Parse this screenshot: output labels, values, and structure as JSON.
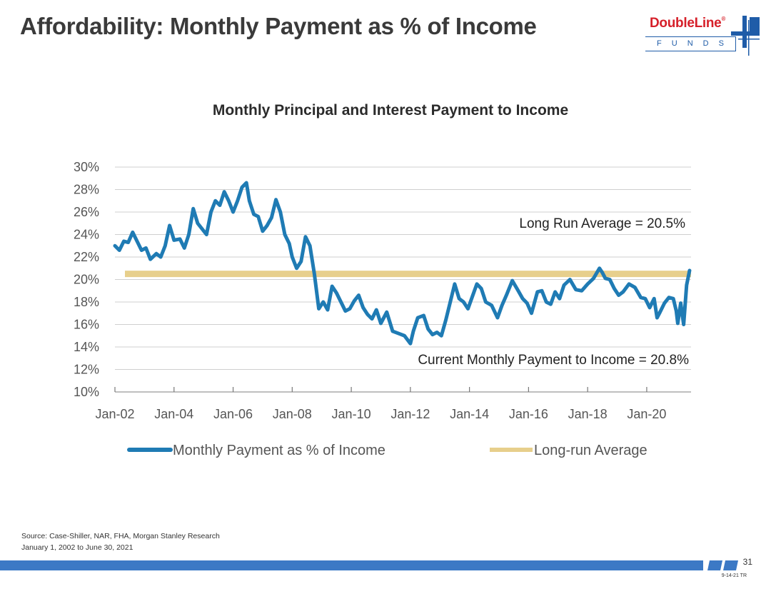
{
  "slide": {
    "title": "Affordability: Monthly Payment as % of Income",
    "page_number": "31",
    "doc_code": "9-14-21 TR"
  },
  "logo": {
    "name": "DoubleLine",
    "registered": "®",
    "subtitle": "FUNDS"
  },
  "source": {
    "line1": "Source: Case-Shiller, NAR, FHA, Morgan Stanley Research",
    "line2": "January 1, 2002 to June 30, 2021"
  },
  "colors": {
    "series": "#1f7bb4",
    "average": "#e7cf8c",
    "brand_red": "#d6202a",
    "brand_blue": "#1f5ca8",
    "footer_blue": "#3c79c5"
  },
  "chart_data": {
    "type": "line",
    "title": "Monthly Principal and Interest Payment to Income",
    "xlabel": "",
    "ylabel": "",
    "ylim": [
      10,
      30
    ],
    "yticks": [
      10,
      12,
      14,
      16,
      18,
      20,
      22,
      24,
      26,
      28,
      30
    ],
    "ytick_labels": [
      "10%",
      "12%",
      "14%",
      "16%",
      "18%",
      "20%",
      "22%",
      "24%",
      "26%",
      "28%",
      "30%"
    ],
    "xlim": [
      2002.0,
      2021.5
    ],
    "xticks": [
      2002,
      2004,
      2006,
      2008,
      2010,
      2012,
      2014,
      2016,
      2018,
      2020
    ],
    "xtick_labels": [
      "Jan-02",
      "Jan-04",
      "Jan-06",
      "Jan-08",
      "Jan-10",
      "Jan-12",
      "Jan-14",
      "Jan-16",
      "Jan-18",
      "Jan-20"
    ],
    "grid": true,
    "legend_position": "bottom",
    "series": [
      {
        "name": "Monthly Payment as % of Income",
        "x": [
          2002.0,
          2002.15,
          2002.3,
          2002.45,
          2002.6,
          2002.75,
          2002.9,
          2003.05,
          2003.2,
          2003.4,
          2003.55,
          2003.7,
          2003.85,
          2004.0,
          2004.2,
          2004.35,
          2004.5,
          2004.65,
          2004.8,
          2004.95,
          2005.1,
          2005.25,
          2005.4,
          2005.55,
          2005.7,
          2005.85,
          2006.0,
          2006.15,
          2006.3,
          2006.45,
          2006.55,
          2006.7,
          2006.85,
          2007.0,
          2007.15,
          2007.3,
          2007.45,
          2007.6,
          2007.75,
          2007.9,
          2008.0,
          2008.15,
          2008.3,
          2008.45,
          2008.6,
          2008.75,
          2008.9,
          2009.05,
          2009.2,
          2009.35,
          2009.5,
          2009.65,
          2009.8,
          2009.95,
          2010.1,
          2010.25,
          2010.4,
          2010.55,
          2010.7,
          2010.85,
          2011.0,
          2011.2,
          2011.4,
          2011.6,
          2011.8,
          2012.0,
          2012.1,
          2012.25,
          2012.45,
          2012.6,
          2012.75,
          2012.9,
          2013.05,
          2013.2,
          2013.35,
          2013.5,
          2013.65,
          2013.8,
          2013.95,
          2014.1,
          2014.25,
          2014.4,
          2014.55,
          2014.75,
          2014.95,
          2015.1,
          2015.25,
          2015.45,
          2015.65,
          2015.8,
          2015.95,
          2016.1,
          2016.3,
          2016.45,
          2016.6,
          2016.75,
          2016.9,
          2017.05,
          2017.2,
          2017.4,
          2017.6,
          2017.8,
          2018.0,
          2018.2,
          2018.4,
          2018.5,
          2018.6,
          2018.75,
          2018.9,
          2019.05,
          2019.2,
          2019.4,
          2019.6,
          2019.8,
          2019.95,
          2020.1,
          2020.25,
          2020.35,
          2020.45,
          2020.6,
          2020.75,
          2020.9,
          2021.0,
          2021.05,
          2021.15,
          2021.25,
          2021.35,
          2021.45
        ],
        "values": [
          23.0,
          22.6,
          23.4,
          23.3,
          24.2,
          23.4,
          22.6,
          22.8,
          21.8,
          22.3,
          22.0,
          23.0,
          24.8,
          23.5,
          23.6,
          22.8,
          24.0,
          26.3,
          25.0,
          24.5,
          24.0,
          26.0,
          27.0,
          26.6,
          27.8,
          27.0,
          26.0,
          27.0,
          28.2,
          28.6,
          27.0,
          25.8,
          25.6,
          24.3,
          24.8,
          25.5,
          27.1,
          26.0,
          24.0,
          23.2,
          22.0,
          21.0,
          21.6,
          23.8,
          23.0,
          20.5,
          17.4,
          18.0,
          17.3,
          19.4,
          18.8,
          18.0,
          17.2,
          17.4,
          18.1,
          18.6,
          17.5,
          16.9,
          16.5,
          17.3,
          16.1,
          17.1,
          15.4,
          15.2,
          15.0,
          14.3,
          15.4,
          16.6,
          16.8,
          15.6,
          15.1,
          15.3,
          15.0,
          16.4,
          18.0,
          19.6,
          18.3,
          18.0,
          17.4,
          18.5,
          19.6,
          19.2,
          18.0,
          17.7,
          16.6,
          17.7,
          18.6,
          19.9,
          19.0,
          18.3,
          17.9,
          17.0,
          18.9,
          19.0,
          18.0,
          17.8,
          18.9,
          18.3,
          19.5,
          20.0,
          19.1,
          19.0,
          19.6,
          20.1,
          21.0,
          20.6,
          20.1,
          20.0,
          19.2,
          18.6,
          18.9,
          19.6,
          19.3,
          18.4,
          18.3,
          17.5,
          18.3,
          16.6,
          17.1,
          17.9,
          18.4,
          18.3,
          17.2,
          16.1,
          17.9,
          16.0,
          19.5,
          20.8
        ]
      },
      {
        "name": "Long-run Average",
        "x": [
          2002.0,
          2021.5
        ],
        "values": [
          20.5,
          20.5
        ]
      }
    ],
    "annotations": [
      {
        "text": "Long Run Average = 20.5%"
      },
      {
        "text": "Current Monthly Payment to Income = 20.8%"
      }
    ]
  }
}
